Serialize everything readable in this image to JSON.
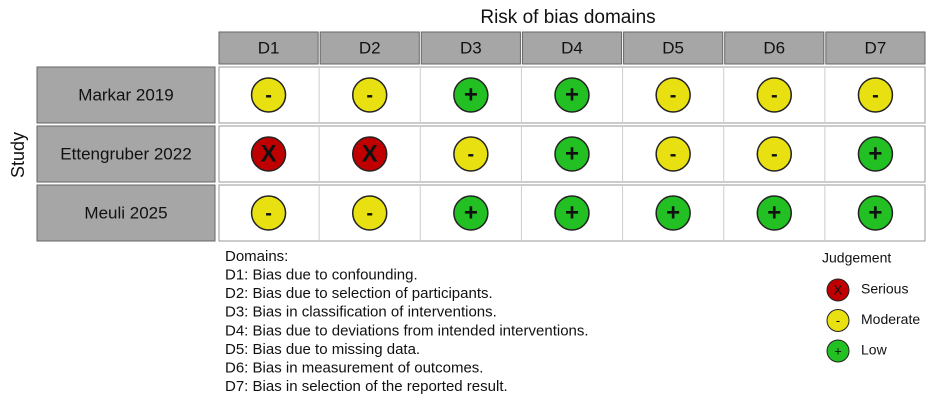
{
  "title": "Risk of bias domains",
  "y_label": "Study",
  "columns": [
    "D1",
    "D2",
    "D3",
    "D4",
    "D5",
    "D6",
    "D7"
  ],
  "rows": [
    {
      "study": "Markar 2019",
      "judgements": [
        "-",
        "-",
        "+",
        "+",
        "-",
        "-",
        "-"
      ]
    },
    {
      "study": "Ettengruber 2022",
      "judgements": [
        "X",
        "X",
        "-",
        "+",
        "-",
        "-",
        "+"
      ]
    },
    {
      "study": "Meuli 2025",
      "judgements": [
        "-",
        "-",
        "+",
        "+",
        "+",
        "+",
        "+"
      ]
    }
  ],
  "domains": {
    "heading": "Domains:",
    "items": [
      "D1: Bias due to confounding.",
      "D2: Bias due to selection of participants.",
      "D3: Bias in classification of interventions.",
      "D4: Bias due to deviations from intended interventions.",
      "D5: Bias due to missing data.",
      "D6: Bias in measurement of outcomes.",
      "D7: Bias in selection of the reported result."
    ]
  },
  "legend": {
    "title": "Judgement",
    "items": [
      {
        "symbol": "X",
        "label": "Serious",
        "color": "#c00000"
      },
      {
        "symbol": "-",
        "label": "Moderate",
        "color": "#e8e010"
      },
      {
        "symbol": "+",
        "label": "Low",
        "color": "#22c022"
      }
    ]
  }
}
